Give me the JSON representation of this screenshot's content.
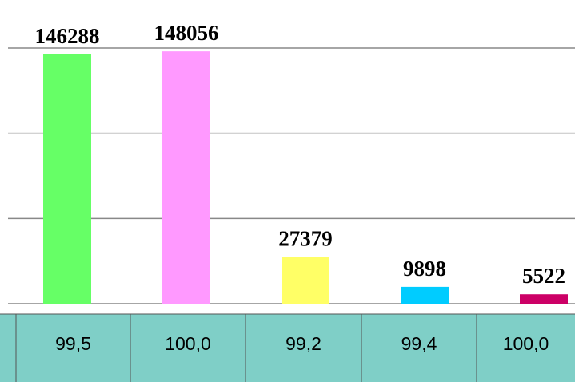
{
  "chart_data": {
    "type": "bar",
    "values": [
      146288,
      148056,
      27379,
      9898,
      5522
    ],
    "colors": [
      "#66ff66",
      "#ff99ff",
      "#ffff66",
      "#00ccff",
      "#cc0066"
    ],
    "ylim": [
      0,
      150000
    ],
    "yticks": [
      0,
      50000,
      100000,
      150000
    ],
    "grid": true,
    "table": [
      "99,5",
      "100,0",
      "99,2",
      "99,4",
      "100,0"
    ]
  }
}
